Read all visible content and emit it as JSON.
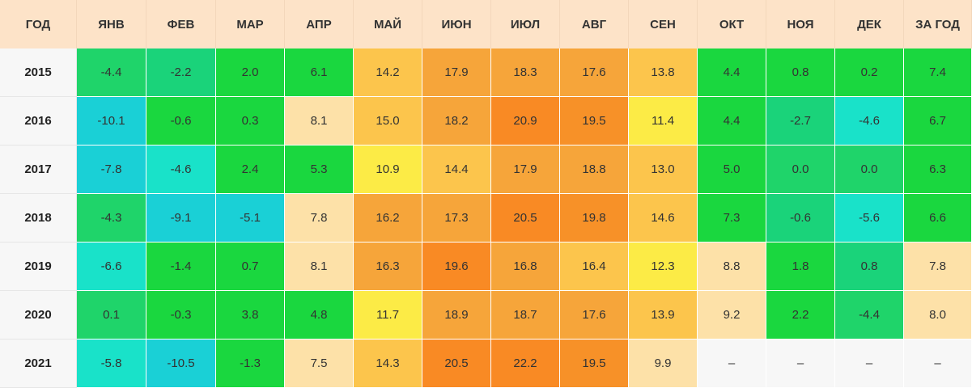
{
  "table": {
    "headers": [
      "ГОД",
      "ЯНВ",
      "ФЕВ",
      "МАР",
      "АПР",
      "МАЙ",
      "ИЮН",
      "ИЮЛ",
      "АВГ",
      "СЕН",
      "ОКТ",
      "НОЯ",
      "ДЕК",
      "ЗА ГОД"
    ],
    "rows": [
      {
        "year": "2015",
        "values": [
          "-4.4",
          "-2.2",
          "2.0",
          "6.1",
          "14.2",
          "17.9",
          "18.3",
          "17.6",
          "13.8",
          "4.4",
          "0.8",
          "0.2",
          "7.4"
        ],
        "colors": [
          "#1fd46a",
          "#1ad37a",
          "#1ad73f",
          "#1ad73f",
          "#fcc54c",
          "#f6a53a",
          "#f6a53a",
          "#f6a53a",
          "#fcc54c",
          "#1ad73f",
          "#1ad73f",
          "#1ad73f",
          "#1ad73f"
        ]
      },
      {
        "year": "2016",
        "values": [
          "-10.1",
          "-0.6",
          "0.3",
          "8.1",
          "15.0",
          "18.2",
          "20.9",
          "19.5",
          "11.4",
          "4.4",
          "-2.7",
          "-4.6",
          "6.7"
        ],
        "colors": [
          "#1ad0d6",
          "#1ad73f",
          "#1ad73f",
          "#fde1a8",
          "#fcc54c",
          "#f6a53a",
          "#f98a24",
          "#f79128",
          "#fceb46",
          "#1ad73f",
          "#1ad37a",
          "#19e2c9",
          "#1ad73f"
        ]
      },
      {
        "year": "2017",
        "values": [
          "-7.8",
          "-4.6",
          "2.4",
          "5.3",
          "10.9",
          "14.4",
          "17.9",
          "18.8",
          "13.0",
          "5.0",
          "0.0",
          "0.0",
          "6.3"
        ],
        "colors": [
          "#1ad0d6",
          "#19e2c9",
          "#1ad73f",
          "#1ad73f",
          "#fceb46",
          "#fcc54c",
          "#f6a53a",
          "#f6a53a",
          "#fcc54c",
          "#1ad73f",
          "#1fd46a",
          "#1fd46a",
          "#1ad73f"
        ]
      },
      {
        "year": "2018",
        "values": [
          "-4.3",
          "-9.1",
          "-5.1",
          "7.8",
          "16.2",
          "17.3",
          "20.5",
          "19.8",
          "14.6",
          "7.3",
          "-0.6",
          "-5.6",
          "6.6"
        ],
        "colors": [
          "#1fd46a",
          "#1ad0d6",
          "#1ad0d6",
          "#fde1a8",
          "#f6a53a",
          "#f6a53a",
          "#f98a24",
          "#f79128",
          "#fcc54c",
          "#1ad73f",
          "#1ad37a",
          "#19e2c9",
          "#1ad73f"
        ]
      },
      {
        "year": "2019",
        "values": [
          "-6.6",
          "-1.4",
          "0.7",
          "8.1",
          "16.3",
          "19.6",
          "16.8",
          "16.4",
          "12.3",
          "8.8",
          "1.8",
          "0.8",
          "7.8"
        ],
        "colors": [
          "#19e2c9",
          "#1ad73f",
          "#1ad73f",
          "#fde1a8",
          "#f6a53a",
          "#f98a24",
          "#f6a53a",
          "#fcc54c",
          "#fceb46",
          "#fde1a8",
          "#1ad73f",
          "#1ad37a",
          "#fde1a8"
        ]
      },
      {
        "year": "2020",
        "values": [
          "0.1",
          "-0.3",
          "3.8",
          "4.8",
          "11.7",
          "18.9",
          "18.7",
          "17.6",
          "13.9",
          "9.2",
          "2.2",
          "-4.4",
          "8.0"
        ],
        "colors": [
          "#1fd46a",
          "#1ad73f",
          "#1ad73f",
          "#1ad73f",
          "#fceb46",
          "#f6a53a",
          "#f6a53a",
          "#f6a53a",
          "#fcc54c",
          "#fde1a8",
          "#1ad73f",
          "#1fd46a",
          "#fde1a8"
        ]
      },
      {
        "year": "2021",
        "values": [
          "-5.8",
          "-10.5",
          "-1.3",
          "7.5",
          "14.3",
          "20.5",
          "22.2",
          "19.5",
          "9.9",
          "–",
          "–",
          "–",
          "–"
        ],
        "colors": [
          "#19e2c9",
          "#1ad0d6",
          "#1ad73f",
          "#fde1a8",
          "#fcc54c",
          "#f98a24",
          "#f98a24",
          "#f79128",
          "#fde1a8",
          "#f7f7f7",
          "#f7f7f7",
          "#f7f7f7",
          "#f7f7f7"
        ]
      }
    ]
  },
  "chart_data": {
    "type": "heatmap",
    "title": "",
    "x_categories": [
      "ЯНВ",
      "ФЕВ",
      "МАР",
      "АПР",
      "МАЙ",
      "ИЮН",
      "ИЮЛ",
      "АВГ",
      "СЕН",
      "ОКТ",
      "НОЯ",
      "ДЕК",
      "ЗА ГОД"
    ],
    "y_categories": [
      "2015",
      "2016",
      "2017",
      "2018",
      "2019",
      "2020",
      "2021"
    ],
    "values": [
      [
        -4.4,
        -2.2,
        2.0,
        6.1,
        14.2,
        17.9,
        18.3,
        17.6,
        13.8,
        4.4,
        0.8,
        0.2,
        7.4
      ],
      [
        -10.1,
        -0.6,
        0.3,
        8.1,
        15.0,
        18.2,
        20.9,
        19.5,
        11.4,
        4.4,
        -2.7,
        -4.6,
        6.7
      ],
      [
        -7.8,
        -4.6,
        2.4,
        5.3,
        10.9,
        14.4,
        17.9,
        18.8,
        13.0,
        5.0,
        0.0,
        0.0,
        6.3
      ],
      [
        -4.3,
        -9.1,
        -5.1,
        7.8,
        16.2,
        17.3,
        20.5,
        19.8,
        14.6,
        7.3,
        -0.6,
        -5.6,
        6.6
      ],
      [
        -6.6,
        -1.4,
        0.7,
        8.1,
        16.3,
        19.6,
        16.8,
        16.4,
        12.3,
        8.8,
        1.8,
        0.8,
        7.8
      ],
      [
        0.1,
        -0.3,
        3.8,
        4.8,
        11.7,
        18.9,
        18.7,
        17.6,
        13.9,
        9.2,
        2.2,
        -4.4,
        8.0
      ],
      [
        -5.8,
        -10.5,
        -1.3,
        7.5,
        14.3,
        20.5,
        22.2,
        19.5,
        9.9,
        null,
        null,
        null,
        null
      ]
    ],
    "missing_label": "–"
  }
}
